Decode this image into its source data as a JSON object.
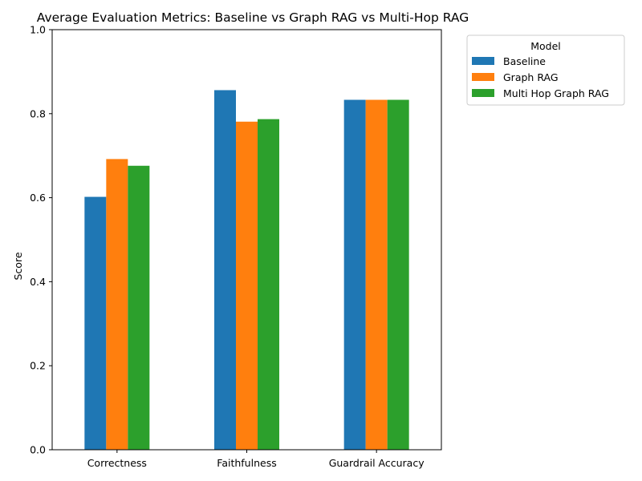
{
  "chart_data": {
    "type": "bar",
    "title": "Average Evaluation Metrics: Baseline vs Graph RAG vs Multi-Hop RAG",
    "xlabel": "",
    "ylabel": "Score",
    "ylim": [
      0,
      1.0
    ],
    "yticks": [
      "0.0",
      "0.2",
      "0.4",
      "0.6",
      "0.8",
      "1.0"
    ],
    "categories": [
      "Correctness",
      "Faithfulness",
      "Guardrail Accuracy"
    ],
    "series": [
      {
        "name": "Baseline",
        "color": "#1f77b4",
        "values": [
          0.602,
          0.856,
          0.833
        ]
      },
      {
        "name": "Graph RAG",
        "color": "#ff7f0e",
        "values": [
          0.692,
          0.781,
          0.833
        ]
      },
      {
        "name": "Multi Hop Graph RAG",
        "color": "#2ca02c",
        "values": [
          0.676,
          0.787,
          0.833
        ]
      }
    ],
    "legend": {
      "title": "Model",
      "placement": "outside-top-right"
    },
    "grid": false
  }
}
